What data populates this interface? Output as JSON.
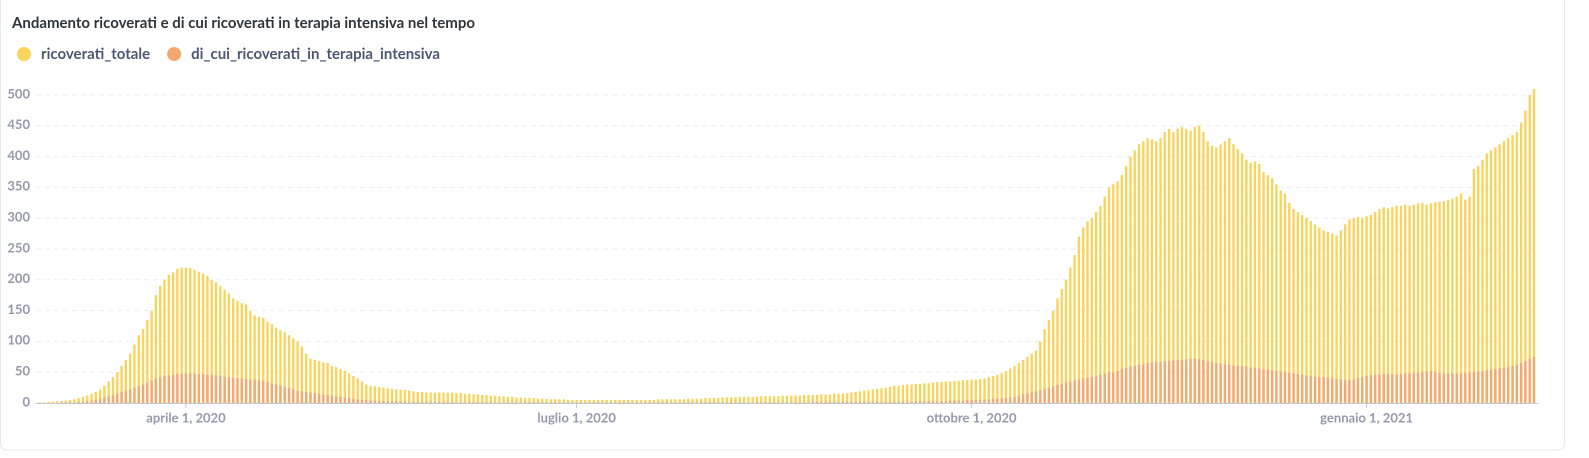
{
  "chart_data": {
    "type": "bar",
    "title": "Andamento ricoverati e di cui ricoverati in terapia intensiva nel tempo",
    "x": [
      "2020-02-27",
      "2020-02-28",
      "2020-02-29",
      "2020-03-01",
      "2020-03-02",
      "2020-03-03",
      "2020-03-04",
      "2020-03-05",
      "2020-03-06",
      "2020-03-07",
      "2020-03-08",
      "2020-03-09",
      "2020-03-10",
      "2020-03-11",
      "2020-03-12",
      "2020-03-13",
      "2020-03-14",
      "2020-03-15",
      "2020-03-16",
      "2020-03-17",
      "2020-03-18",
      "2020-03-19",
      "2020-03-20",
      "2020-03-21",
      "2020-03-22",
      "2020-03-23",
      "2020-03-24",
      "2020-03-25",
      "2020-03-26",
      "2020-03-27",
      "2020-03-28",
      "2020-03-29",
      "2020-03-30",
      "2020-03-31",
      "2020-04-01",
      "2020-04-02",
      "2020-04-03",
      "2020-04-04",
      "2020-04-05",
      "2020-04-06",
      "2020-04-07",
      "2020-04-08",
      "2020-04-09",
      "2020-04-10",
      "2020-04-11",
      "2020-04-12",
      "2020-04-13",
      "2020-04-14",
      "2020-04-15",
      "2020-04-16",
      "2020-04-17",
      "2020-04-18",
      "2020-04-19",
      "2020-04-20",
      "2020-04-21",
      "2020-04-22",
      "2020-04-23",
      "2020-04-24",
      "2020-04-25",
      "2020-04-26",
      "2020-04-27",
      "2020-04-28",
      "2020-04-29",
      "2020-04-30",
      "2020-05-01",
      "2020-05-02",
      "2020-05-03",
      "2020-05-04",
      "2020-05-05",
      "2020-05-06",
      "2020-05-07",
      "2020-05-08",
      "2020-05-09",
      "2020-05-10",
      "2020-05-11",
      "2020-05-12",
      "2020-05-13",
      "2020-05-14",
      "2020-05-15",
      "2020-05-16",
      "2020-05-17",
      "2020-05-18",
      "2020-05-19",
      "2020-05-20",
      "2020-05-21",
      "2020-05-22",
      "2020-05-23",
      "2020-05-24",
      "2020-05-25",
      "2020-05-26",
      "2020-05-27",
      "2020-05-28",
      "2020-05-29",
      "2020-05-30",
      "2020-05-31",
      "2020-06-01",
      "2020-06-02",
      "2020-06-03",
      "2020-06-04",
      "2020-06-05",
      "2020-06-06",
      "2020-06-07",
      "2020-06-08",
      "2020-06-09",
      "2020-06-10",
      "2020-06-11",
      "2020-06-12",
      "2020-06-13",
      "2020-06-14",
      "2020-06-15",
      "2020-06-16",
      "2020-06-17",
      "2020-06-18",
      "2020-06-19",
      "2020-06-20",
      "2020-06-21",
      "2020-06-22",
      "2020-06-23",
      "2020-06-24",
      "2020-06-25",
      "2020-06-26",
      "2020-06-27",
      "2020-06-28",
      "2020-06-29",
      "2020-06-30",
      "2020-07-01",
      "2020-07-02",
      "2020-07-03",
      "2020-07-04",
      "2020-07-05",
      "2020-07-06",
      "2020-07-07",
      "2020-07-08",
      "2020-07-09",
      "2020-07-10",
      "2020-07-11",
      "2020-07-12",
      "2020-07-13",
      "2020-07-14",
      "2020-07-15",
      "2020-07-16",
      "2020-07-17",
      "2020-07-18",
      "2020-07-19",
      "2020-07-20",
      "2020-07-21",
      "2020-07-22",
      "2020-07-23",
      "2020-07-24",
      "2020-07-25",
      "2020-07-26",
      "2020-07-27",
      "2020-07-28",
      "2020-07-29",
      "2020-07-30",
      "2020-07-31",
      "2020-08-01",
      "2020-08-02",
      "2020-08-03",
      "2020-08-04",
      "2020-08-05",
      "2020-08-06",
      "2020-08-07",
      "2020-08-08",
      "2020-08-09",
      "2020-08-10",
      "2020-08-11",
      "2020-08-12",
      "2020-08-13",
      "2020-08-14",
      "2020-08-15",
      "2020-08-16",
      "2020-08-17",
      "2020-08-18",
      "2020-08-19",
      "2020-08-20",
      "2020-08-21",
      "2020-08-22",
      "2020-08-23",
      "2020-08-24",
      "2020-08-25",
      "2020-08-26",
      "2020-08-27",
      "2020-08-28",
      "2020-08-29",
      "2020-08-30",
      "2020-08-31",
      "2020-09-01",
      "2020-09-02",
      "2020-09-03",
      "2020-09-04",
      "2020-09-05",
      "2020-09-06",
      "2020-09-07",
      "2020-09-08",
      "2020-09-09",
      "2020-09-10",
      "2020-09-11",
      "2020-09-12",
      "2020-09-13",
      "2020-09-14",
      "2020-09-15",
      "2020-09-16",
      "2020-09-17",
      "2020-09-18",
      "2020-09-19",
      "2020-09-20",
      "2020-09-21",
      "2020-09-22",
      "2020-09-23",
      "2020-09-24",
      "2020-09-25",
      "2020-09-26",
      "2020-09-27",
      "2020-09-28",
      "2020-09-29",
      "2020-09-30",
      "2020-10-01",
      "2020-10-02",
      "2020-10-03",
      "2020-10-04",
      "2020-10-05",
      "2020-10-06",
      "2020-10-07",
      "2020-10-08",
      "2020-10-09",
      "2020-10-10",
      "2020-10-11",
      "2020-10-12",
      "2020-10-13",
      "2020-10-14",
      "2020-10-15",
      "2020-10-16",
      "2020-10-17",
      "2020-10-18",
      "2020-10-19",
      "2020-10-20",
      "2020-10-21",
      "2020-10-22",
      "2020-10-23",
      "2020-10-24",
      "2020-10-25",
      "2020-10-26",
      "2020-10-27",
      "2020-10-28",
      "2020-10-29",
      "2020-10-30",
      "2020-10-31",
      "2020-11-01",
      "2020-11-02",
      "2020-11-03",
      "2020-11-04",
      "2020-11-05",
      "2020-11-06",
      "2020-11-07",
      "2020-11-08",
      "2020-11-09",
      "2020-11-10",
      "2020-11-11",
      "2020-11-12",
      "2020-11-13",
      "2020-11-14",
      "2020-11-15",
      "2020-11-16",
      "2020-11-17",
      "2020-11-18",
      "2020-11-19",
      "2020-11-20",
      "2020-11-21",
      "2020-11-22",
      "2020-11-23",
      "2020-11-24",
      "2020-11-25",
      "2020-11-26",
      "2020-11-27",
      "2020-11-28",
      "2020-11-29",
      "2020-11-30",
      "2020-12-01",
      "2020-12-02",
      "2020-12-03",
      "2020-12-04",
      "2020-12-05",
      "2020-12-06",
      "2020-12-07",
      "2020-12-08",
      "2020-12-09",
      "2020-12-10",
      "2020-12-11",
      "2020-12-12",
      "2020-12-13",
      "2020-12-14",
      "2020-12-15",
      "2020-12-16",
      "2020-12-17",
      "2020-12-18",
      "2020-12-19",
      "2020-12-20",
      "2020-12-21",
      "2020-12-22",
      "2020-12-23",
      "2020-12-24",
      "2020-12-25",
      "2020-12-26",
      "2020-12-27",
      "2020-12-28",
      "2020-12-29",
      "2020-12-30",
      "2020-12-31",
      "2021-01-01",
      "2021-01-02",
      "2021-01-03",
      "2021-01-04",
      "2021-01-05",
      "2021-01-06",
      "2021-01-07",
      "2021-01-08",
      "2021-01-09",
      "2021-01-10",
      "2021-01-11",
      "2021-01-12",
      "2021-01-13",
      "2021-01-14",
      "2021-01-15",
      "2021-01-16",
      "2021-01-17",
      "2021-01-18",
      "2021-01-19",
      "2021-01-20",
      "2021-01-21",
      "2021-01-22",
      "2021-01-23",
      "2021-01-24",
      "2021-01-25",
      "2021-01-26",
      "2021-01-27",
      "2021-01-28",
      "2021-01-29",
      "2021-01-30",
      "2021-01-31",
      "2021-02-01",
      "2021-02-02",
      "2021-02-03",
      "2021-02-04",
      "2021-02-05",
      "2021-02-06",
      "2021-02-07",
      "2021-02-08",
      "2021-02-09"
    ],
    "series": [
      {
        "name": "ricoverati_totale",
        "color": "#f9d45c",
        "values": [
          1,
          1,
          2,
          2,
          3,
          3,
          4,
          5,
          6,
          8,
          10,
          12,
          15,
          18,
          22,
          28,
          35,
          42,
          50,
          60,
          70,
          80,
          95,
          110,
          120,
          135,
          150,
          175,
          190,
          200,
          208,
          212,
          218,
          220,
          220,
          219,
          216,
          213,
          210,
          206,
          200,
          196,
          190,
          184,
          178,
          170,
          166,
          162,
          160,
          150,
          142,
          140,
          138,
          132,
          128,
          122,
          118,
          115,
          110,
          105,
          100,
          92,
          80,
          72,
          70,
          68,
          66,
          65,
          60,
          58,
          55,
          52,
          48,
          44,
          40,
          35,
          30,
          28,
          27,
          26,
          25,
          24,
          23,
          22,
          22,
          21,
          20,
          19,
          18,
          18,
          17,
          17,
          17,
          17,
          17,
          17,
          17,
          16,
          16,
          15,
          15,
          14,
          14,
          13,
          13,
          12,
          12,
          11,
          11,
          10,
          10,
          9,
          9,
          8,
          8,
          8,
          7,
          7,
          7,
          6,
          6,
          6,
          6,
          5,
          5,
          5,
          5,
          5,
          5,
          5,
          5,
          5,
          5,
          5,
          5,
          5,
          5,
          5,
          5,
          5,
          5,
          5,
          5,
          5,
          6,
          6,
          6,
          6,
          6,
          6,
          6,
          7,
          7,
          7,
          7,
          8,
          8,
          8,
          8,
          9,
          9,
          9,
          9,
          10,
          10,
          10,
          10,
          10,
          11,
          11,
          11,
          11,
          11,
          12,
          12,
          12,
          12,
          12,
          13,
          13,
          13,
          13,
          14,
          14,
          14,
          15,
          15,
          15,
          16,
          17,
          18,
          19,
          20,
          21,
          22,
          23,
          24,
          25,
          26,
          28,
          28,
          29,
          30,
          30,
          31,
          31,
          32,
          32,
          33,
          34,
          34,
          35,
          35,
          36,
          36,
          37,
          37,
          38,
          38,
          39,
          40,
          42,
          44,
          46,
          48,
          52,
          56,
          60,
          65,
          70,
          75,
          80,
          85,
          100,
          120,
          135,
          150,
          170,
          185,
          200,
          220,
          240,
          270,
          285,
          295,
          300,
          310,
          320,
          335,
          350,
          355,
          360,
          370,
          385,
          400,
          410,
          420,
          425,
          430,
          428,
          425,
          430,
          440,
          445,
          440,
          445,
          448,
          445,
          442,
          448,
          450,
          440,
          425,
          418,
          415,
          420,
          425,
          430,
          420,
          412,
          405,
          395,
          390,
          392,
          388,
          375,
          370,
          365,
          355,
          345,
          340,
          325,
          315,
          310,
          305,
          300,
          295,
          290,
          285,
          280,
          278,
          275,
          272,
          280,
          290,
          298,
          300,
          302,
          300,
          303,
          305,
          310,
          315,
          318,
          316,
          318,
          320,
          320,
          322,
          320,
          322,
          324,
          325,
          322,
          324,
          326,
          327,
          328,
          330,
          332,
          335,
          340,
          330,
          335,
          380,
          385,
          395,
          405,
          410,
          415,
          420,
          425,
          430,
          435,
          440,
          455,
          475,
          500,
          510
        ]
      },
      {
        "name": "di_cui_ricoverati_in_terapia_intensiva",
        "color": "#f2a86f",
        "values": [
          0,
          0,
          0,
          0,
          0,
          1,
          1,
          1,
          1,
          2,
          2,
          3,
          4,
          5,
          7,
          9,
          11,
          13,
          15,
          18,
          20,
          22,
          25,
          27,
          30,
          33,
          36,
          40,
          42,
          44,
          45,
          46,
          47,
          47,
          48,
          48,
          48,
          47,
          47,
          46,
          46,
          45,
          44,
          43,
          42,
          41,
          40,
          40,
          39,
          38,
          38,
          37,
          36,
          34,
          32,
          30,
          28,
          26,
          24,
          22,
          20,
          19,
          18,
          17,
          16,
          15,
          14,
          13,
          12,
          11,
          10,
          9,
          8,
          7,
          6,
          5,
          5,
          4,
          4,
          3,
          3,
          3,
          3,
          3,
          2,
          2,
          2,
          2,
          2,
          2,
          2,
          2,
          2,
          2,
          2,
          2,
          2,
          1,
          1,
          1,
          1,
          1,
          1,
          1,
          1,
          1,
          1,
          1,
          1,
          1,
          1,
          1,
          1,
          1,
          1,
          1,
          1,
          1,
          1,
          1,
          1,
          1,
          1,
          1,
          1,
          1,
          1,
          1,
          1,
          1,
          1,
          1,
          1,
          1,
          1,
          1,
          1,
          1,
          1,
          1,
          1,
          1,
          1,
          1,
          1,
          1,
          1,
          1,
          1,
          1,
          1,
          1,
          1,
          1,
          1,
          1,
          1,
          1,
          1,
          1,
          1,
          1,
          1,
          1,
          1,
          1,
          1,
          1,
          1,
          1,
          1,
          1,
          1,
          1,
          1,
          1,
          1,
          1,
          1,
          1,
          2,
          2,
          2,
          2,
          2,
          2,
          2,
          2,
          2,
          2,
          2,
          2,
          2,
          2,
          2,
          2,
          2,
          2,
          2,
          2,
          2,
          2,
          2,
          2,
          3,
          3,
          3,
          3,
          3,
          3,
          3,
          3,
          4,
          4,
          4,
          4,
          5,
          5,
          5,
          5,
          6,
          6,
          7,
          7,
          8,
          8,
          9,
          10,
          12,
          14,
          15,
          17,
          19,
          21,
          23,
          25,
          27,
          29,
          31,
          33,
          35,
          37,
          38,
          40,
          41,
          42,
          44,
          46,
          48,
          50,
          50,
          52,
          55,
          57,
          59,
          60,
          62,
          63,
          65,
          66,
          66,
          67,
          68,
          68,
          69,
          70,
          70,
          71,
          72,
          72,
          71,
          70,
          68,
          66,
          65,
          64,
          63,
          62,
          61,
          60,
          60,
          59,
          58,
          57,
          56,
          55,
          54,
          53,
          52,
          51,
          50,
          49,
          48,
          47,
          46,
          45,
          44,
          43,
          42,
          42,
          41,
          40,
          39,
          38,
          37,
          37,
          38,
          40,
          42,
          44,
          45,
          46,
          46,
          47,
          47,
          47,
          46,
          47,
          48,
          48,
          48,
          49,
          50,
          51,
          52,
          50,
          49,
          48,
          48,
          48,
          48,
          48,
          49,
          50,
          50,
          51,
          52,
          53,
          54,
          55,
          56,
          57,
          58,
          60,
          62,
          65,
          68,
          72,
          75
        ]
      }
    ],
    "xlim": [
      "2020-02-27",
      "2021-02-09"
    ],
    "xticks": [
      {
        "value": "2020-04-01",
        "label": "aprile 1, 2020"
      },
      {
        "value": "2020-07-01",
        "label": "luglio 1, 2020"
      },
      {
        "value": "2020-10-01",
        "label": "ottobre 1, 2020"
      },
      {
        "value": "2021-01-01",
        "label": "gennaio 1, 2021"
      }
    ],
    "ylim": [
      0,
      500
    ],
    "yticks": [
      0,
      50,
      100,
      150,
      200,
      250,
      300,
      350,
      400,
      450,
      500
    ],
    "grid": true
  }
}
